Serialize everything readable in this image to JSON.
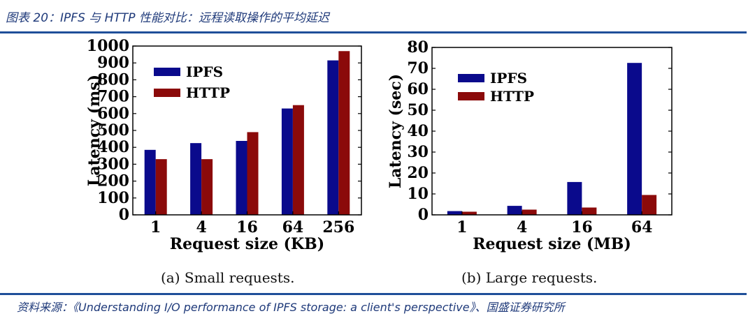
{
  "figure": {
    "title": "图表 20：IPFS 与 HTTP 性能对比：远程读取操作的平均延迟",
    "source": "资料来源：《Understanding I/O performance of IPFS storage: a client's perspective》、国盛证券研究所"
  },
  "colors": {
    "ipfs": "#0a0a8c",
    "http": "#8b0a0a",
    "rule": "#1f4f99",
    "header_text": "#1f3a7a"
  },
  "chart_data": [
    {
      "type": "bar",
      "caption": "(a)  Small requests.",
      "xlabel": "Request size (KB)",
      "ylabel": "Latency (ms)",
      "categories": [
        "1",
        "4",
        "16",
        "64",
        "256"
      ],
      "ylim": [
        0,
        1000
      ],
      "yticks": [
        0,
        100,
        200,
        300,
        400,
        500,
        600,
        700,
        800,
        900,
        1000
      ],
      "legend_position": "top-left",
      "series": [
        {
          "name": "IPFS",
          "color": "#0a0a8c",
          "values": [
            385,
            425,
            438,
            630,
            915
          ]
        },
        {
          "name": "HTTP",
          "color": "#8b0a0a",
          "values": [
            330,
            330,
            490,
            650,
            970
          ]
        }
      ]
    },
    {
      "type": "bar",
      "caption": "(b)  Large requests.",
      "xlabel": "Request size (MB)",
      "ylabel": "Latency (sec)",
      "categories": [
        "1",
        "4",
        "16",
        "64"
      ],
      "ylim": [
        0,
        80
      ],
      "yticks": [
        0,
        10,
        20,
        30,
        40,
        50,
        60,
        70,
        80
      ],
      "legend_position": "top-left",
      "series": [
        {
          "name": "IPFS",
          "color": "#0a0a8c",
          "values": [
            1.8,
            4.3,
            15.7,
            72.6
          ]
        },
        {
          "name": "HTTP",
          "color": "#8b0a0a",
          "values": [
            1.5,
            2.5,
            3.5,
            9.5
          ]
        }
      ]
    }
  ]
}
